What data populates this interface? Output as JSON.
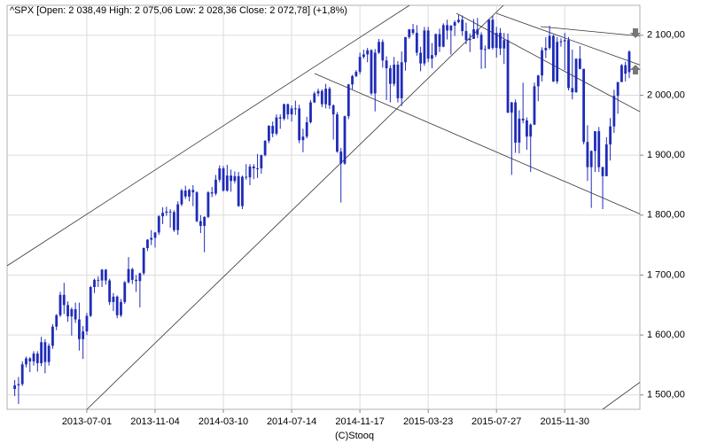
{
  "chart_data": {
    "type": "candlestick",
    "title": "^SPX [Open: 2 038,49 High: 2 075,06 Low: 2 028,36 Close: 2 072,78] (+1,8%)",
    "footer": "(C)Stooq",
    "color": "#1f2bb8",
    "grid": true,
    "ylim": [
      1476,
      2150
    ],
    "yticks": [
      {
        "value": 1500,
        "label": "1 500,00"
      },
      {
        "value": 1600,
        "label": "1 600,00"
      },
      {
        "value": 1700,
        "label": "1 700,00"
      },
      {
        "value": 1800,
        "label": "1 800,00"
      },
      {
        "value": 1900,
        "label": "1 900,00"
      },
      {
        "value": 2000,
        "label": "2 000,00"
      },
      {
        "value": 2100,
        "label": "2 100,00"
      }
    ],
    "categories": [
      null,
      null,
      null,
      null,
      null,
      null,
      null,
      null,
      null,
      null,
      null,
      null,
      null,
      null,
      null,
      null,
      null,
      null,
      null,
      "2013-07-01",
      null,
      null,
      null,
      null,
      null,
      null,
      null,
      null,
      null,
      null,
      null,
      null,
      null,
      null,
      null,
      null,
      null,
      "2013-11-04",
      null,
      null,
      null,
      null,
      null,
      null,
      null,
      null,
      null,
      null,
      null,
      null,
      null,
      null,
      null,
      null,
      null,
      "2014-03-10",
      null,
      null,
      null,
      null,
      null,
      null,
      null,
      null,
      null,
      null,
      null,
      null,
      null,
      null,
      null,
      null,
      null,
      "2014-07-14",
      null,
      null,
      null,
      null,
      null,
      null,
      null,
      null,
      null,
      null,
      null,
      null,
      null,
      null,
      null,
      null,
      null,
      "2014-11-17",
      null,
      null,
      null,
      null,
      null,
      null,
      null,
      null,
      null,
      null,
      null,
      null,
      null,
      null,
      null,
      null,
      null,
      "2015-03-23",
      null,
      null,
      null,
      null,
      null,
      null,
      null,
      null,
      null,
      null,
      null,
      null,
      null,
      null,
      null,
      null,
      null,
      "2015-07-27",
      null,
      null,
      null,
      null,
      null,
      null,
      null,
      null,
      null,
      null,
      null,
      null,
      null,
      null,
      null,
      null,
      null,
      "2015-11-30",
      null,
      null,
      null,
      null,
      null,
      null,
      null,
      null,
      null,
      null,
      null,
      null,
      null,
      null,
      null,
      null,
      null
    ],
    "ohlc": [
      [
        1510,
        1525,
        1498,
        1516
      ],
      [
        1516,
        1530,
        1485,
        1518
      ],
      [
        1518,
        1556,
        1515,
        1551
      ],
      [
        1551,
        1564,
        1546,
        1561
      ],
      [
        1561,
        1563,
        1538,
        1556
      ],
      [
        1556,
        1573,
        1549,
        1569
      ],
      [
        1569,
        1573,
        1539,
        1553
      ],
      [
        1553,
        1597,
        1548,
        1588
      ],
      [
        1588,
        1593,
        1536,
        1555
      ],
      [
        1555,
        1586,
        1549,
        1582
      ],
      [
        1582,
        1618,
        1577,
        1614
      ],
      [
        1614,
        1635,
        1608,
        1633
      ],
      [
        1633,
        1672,
        1630,
        1667
      ],
      [
        1667,
        1687,
        1635,
        1650
      ],
      [
        1650,
        1656,
        1622,
        1631
      ],
      [
        1631,
        1646,
        1599,
        1643
      ],
      [
        1643,
        1654,
        1620,
        1626
      ],
      [
        1626,
        1654,
        1574,
        1593
      ],
      [
        1593,
        1615,
        1560,
        1606
      ],
      [
        1606,
        1637,
        1600,
        1632
      ],
      [
        1632,
        1682,
        1630,
        1680
      ],
      [
        1680,
        1694,
        1670,
        1692
      ],
      [
        1692,
        1698,
        1680,
        1691
      ],
      [
        1691,
        1710,
        1680,
        1709
      ],
      [
        1709,
        1710,
        1684,
        1691
      ],
      [
        1691,
        1694,
        1650,
        1655
      ],
      [
        1655,
        1670,
        1640,
        1664
      ],
      [
        1664,
        1666,
        1628,
        1633
      ],
      [
        1633,
        1660,
        1630,
        1655
      ],
      [
        1655,
        1690,
        1652,
        1688
      ],
      [
        1688,
        1730,
        1686,
        1710
      ],
      [
        1710,
        1712,
        1685,
        1692
      ],
      [
        1692,
        1700,
        1672,
        1690
      ],
      [
        1690,
        1704,
        1646,
        1703
      ],
      [
        1703,
        1746,
        1700,
        1745
      ],
      [
        1745,
        1760,
        1740,
        1759
      ],
      [
        1759,
        1775,
        1750,
        1762
      ],
      [
        1762,
        1772,
        1746,
        1771
      ],
      [
        1771,
        1800,
        1767,
        1798
      ],
      [
        1798,
        1813,
        1785,
        1804
      ],
      [
        1804,
        1814,
        1799,
        1806
      ],
      [
        1806,
        1810,
        1779,
        1805
      ],
      [
        1805,
        1808,
        1772,
        1775
      ],
      [
        1775,
        1823,
        1767,
        1818
      ],
      [
        1818,
        1844,
        1815,
        1841
      ],
      [
        1841,
        1849,
        1827,
        1831
      ],
      [
        1831,
        1844,
        1823,
        1842
      ],
      [
        1842,
        1850,
        1815,
        1838
      ],
      [
        1838,
        1840,
        1788,
        1790
      ],
      [
        1790,
        1800,
        1770,
        1782
      ],
      [
        1782,
        1798,
        1738,
        1797
      ],
      [
        1797,
        1840,
        1795,
        1838
      ],
      [
        1838,
        1847,
        1830,
        1836
      ],
      [
        1836,
        1867,
        1833,
        1859
      ],
      [
        1859,
        1883,
        1855,
        1878
      ],
      [
        1878,
        1882,
        1839,
        1841
      ],
      [
        1841,
        1884,
        1839,
        1866
      ],
      [
        1866,
        1876,
        1839,
        1857
      ],
      [
        1857,
        1873,
        1853,
        1865
      ],
      [
        1865,
        1872,
        1814,
        1815
      ],
      [
        1815,
        1866,
        1810,
        1864
      ],
      [
        1864,
        1885,
        1859,
        1863
      ],
      [
        1863,
        1885,
        1850,
        1881
      ],
      [
        1881,
        1885,
        1860,
        1878
      ],
      [
        1878,
        1902,
        1862,
        1878
      ],
      [
        1878,
        1901,
        1869,
        1900
      ],
      [
        1900,
        1925,
        1898,
        1924
      ],
      [
        1924,
        1950,
        1920,
        1949
      ],
      [
        1949,
        1956,
        1930,
        1936
      ],
      [
        1936,
        1968,
        1933,
        1963
      ],
      [
        1963,
        1968,
        1944,
        1961
      ],
      [
        1961,
        1986,
        1958,
        1985
      ],
      [
        1985,
        1986,
        1960,
        1968
      ],
      [
        1968,
        1983,
        1956,
        1978
      ],
      [
        1978,
        1991,
        1967,
        1978
      ],
      [
        1978,
        1984,
        1920,
        1925
      ],
      [
        1925,
        1944,
        1905,
        1931
      ],
      [
        1931,
        1964,
        1928,
        1955
      ],
      [
        1955,
        1992,
        1953,
        1988
      ],
      [
        1988,
        2006,
        1987,
        2003
      ],
      [
        2003,
        2011,
        1998,
        2007
      ],
      [
        2007,
        2010,
        1980,
        1985
      ],
      [
        1985,
        2019,
        1978,
        2011
      ],
      [
        2011,
        2014,
        1977,
        1983
      ],
      [
        1983,
        1985,
        1926,
        1968
      ],
      [
        1968,
        1972,
        1904,
        1906
      ],
      [
        1906,
        1912,
        1821,
        1886
      ],
      [
        1886,
        1966,
        1884,
        1965
      ],
      [
        1965,
        2019,
        1960,
        2018
      ],
      [
        2018,
        2034,
        2010,
        2032
      ],
      [
        2032,
        2042,
        2030,
        2039
      ],
      [
        2039,
        2071,
        2035,
        2064
      ],
      [
        2064,
        2076,
        2061,
        2068
      ],
      [
        2068,
        2079,
        2055,
        2075
      ],
      [
        2075,
        2077,
        2000,
        2003
      ],
      [
        2003,
        2077,
        1973,
        2071
      ],
      [
        2071,
        2094,
        2069,
        2089
      ],
      [
        2089,
        2093,
        2046,
        2058
      ],
      [
        2058,
        2065,
        1992,
        2045
      ],
      [
        2045,
        2050,
        1988,
        2019
      ],
      [
        2019,
        2064,
        2015,
        2051
      ],
      [
        2051,
        2057,
        1988,
        1995
      ],
      [
        1995,
        2073,
        1982,
        2055
      ],
      [
        2055,
        2097,
        2041,
        2097
      ],
      [
        2097,
        2110,
        2094,
        2110
      ],
      [
        2110,
        2119,
        2101,
        2104
      ],
      [
        2104,
        2117,
        2066,
        2071
      ],
      [
        2071,
        2081,
        2040,
        2053
      ],
      [
        2053,
        2114,
        2049,
        2108
      ],
      [
        2108,
        2114,
        2055,
        2061
      ],
      [
        2061,
        2087,
        2045,
        2067
      ],
      [
        2067,
        2103,
        2064,
        2102
      ],
      [
        2102,
        2111,
        2072,
        2081
      ],
      [
        2081,
        2120,
        2080,
        2117
      ],
      [
        2117,
        2126,
        2093,
        2108
      ],
      [
        2108,
        2117,
        2068,
        2116
      ],
      [
        2116,
        2125,
        2099,
        2122
      ],
      [
        2122,
        2134,
        2120,
        2126
      ],
      [
        2126,
        2133,
        2099,
        2107
      ],
      [
        2107,
        2121,
        2085,
        2092
      ],
      [
        2092,
        2103,
        2072,
        2094
      ],
      [
        2094,
        2127,
        2094,
        2110
      ],
      [
        2110,
        2129,
        2095,
        2101
      ],
      [
        2101,
        2105,
        2044,
        2076
      ],
      [
        2076,
        2083,
        2045,
        2077
      ],
      [
        2077,
        2127,
        2077,
        2126
      ],
      [
        2126,
        2133,
        2076,
        2079
      ],
      [
        2079,
        2114,
        2063,
        2104
      ],
      [
        2104,
        2112,
        2067,
        2078
      ],
      [
        2078,
        2104,
        2052,
        2092
      ],
      [
        2092,
        2103,
        1970,
        1971
      ],
      [
        1971,
        1989,
        1867,
        1988
      ],
      [
        1988,
        1993,
        1904,
        1921
      ],
      [
        1921,
        1975,
        1903,
        1961
      ],
      [
        1961,
        2021,
        1953,
        1958
      ],
      [
        1958,
        1963,
        1909,
        1931
      ],
      [
        1931,
        1953,
        1872,
        1951
      ],
      [
        1951,
        2021,
        1950,
        2015
      ],
      [
        2015,
        2034,
        1990,
        2033
      ],
      [
        2033,
        2080,
        2023,
        2075
      ],
      [
        2075,
        2097,
        2062,
        2079
      ],
      [
        2079,
        2116,
        2076,
        2099
      ],
      [
        2099,
        2101,
        2022,
        2023
      ],
      [
        2023,
        2097,
        2019,
        2089
      ],
      [
        2089,
        2095,
        2081,
        2090
      ],
      [
        2090,
        2104,
        2042,
        2092
      ],
      [
        2092,
        2097,
        2008,
        2012
      ],
      [
        2012,
        2076,
        1993,
        2005
      ],
      [
        2005,
        2061,
        2004,
        2061
      ],
      [
        2061,
        2082,
        2043,
        2044
      ],
      [
        2044,
        2044,
        1918,
        1922
      ],
      [
        1922,
        1950,
        1857,
        1880
      ],
      [
        1880,
        1908,
        1812,
        1907
      ],
      [
        1907,
        1940,
        1872,
        1940
      ],
      [
        1940,
        1947,
        1872,
        1880
      ],
      [
        1880,
        1881,
        1810,
        1865
      ],
      [
        1865,
        1930,
        1865,
        1918
      ],
      [
        1918,
        1962,
        1891,
        1948
      ],
      [
        1948,
        2009,
        1937,
        1999
      ],
      [
        1999,
        2022,
        1969,
        2022
      ],
      [
        2022,
        2052,
        2022,
        2050
      ],
      [
        2050,
        2056,
        2023,
        2036
      ],
      [
        2038.49,
        2075.06,
        2028.36,
        2072.78
      ]
    ]
  }
}
